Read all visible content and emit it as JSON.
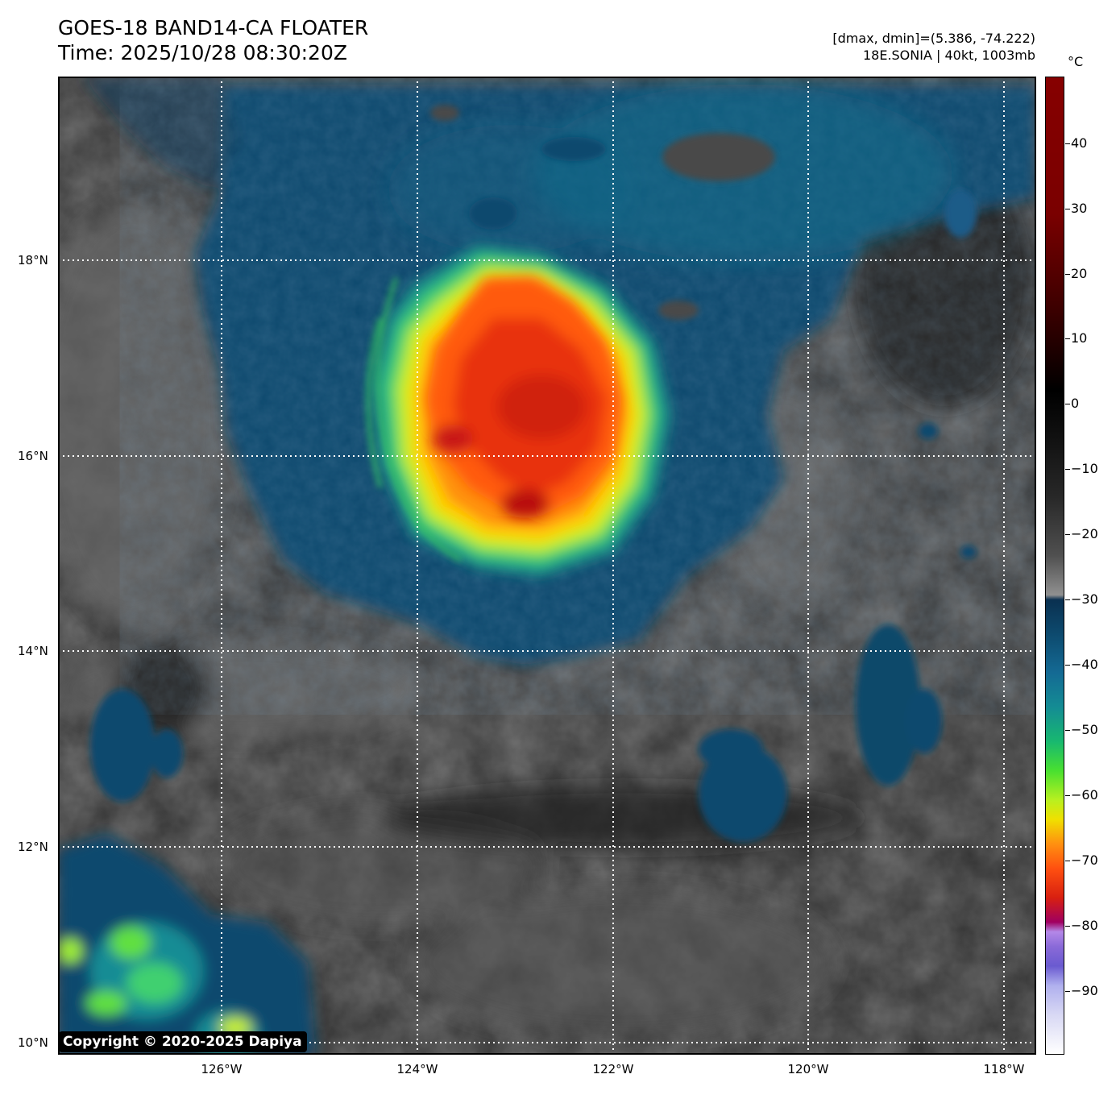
{
  "header": {
    "title": "GOES-18 BAND14-CA FLOATER",
    "time": "Time: 2025/10/28 08:30:20Z",
    "range": "[dmax, dmin]=(5.386, -74.222)",
    "storm": "18E.SONIA | 40kt, 1003mb"
  },
  "map": {
    "lat_labels": [
      "18°N",
      "16°N",
      "14°N",
      "12°N",
      "10°N"
    ],
    "lon_labels": [
      "126°W",
      "124°W",
      "122°W",
      "120°W",
      "118°W"
    ],
    "gridline_style": "dotted white",
    "colors": {
      "cold_core": "#e02010",
      "ring_yellow": "#f0e000",
      "ring_green": "#40e040",
      "cloud_blue": "#0d4a6e",
      "clear_gray": "#4a4a4a"
    }
  },
  "colorbar": {
    "unit": "°C",
    "labels": [
      "40",
      "30",
      "20",
      "10",
      "0",
      "−10",
      "−20",
      "−30",
      "−40",
      "−50",
      "−60",
      "−70",
      "−80",
      "−90"
    ]
  },
  "copyright": "Copyright © 2020-2025 Dapiya"
}
